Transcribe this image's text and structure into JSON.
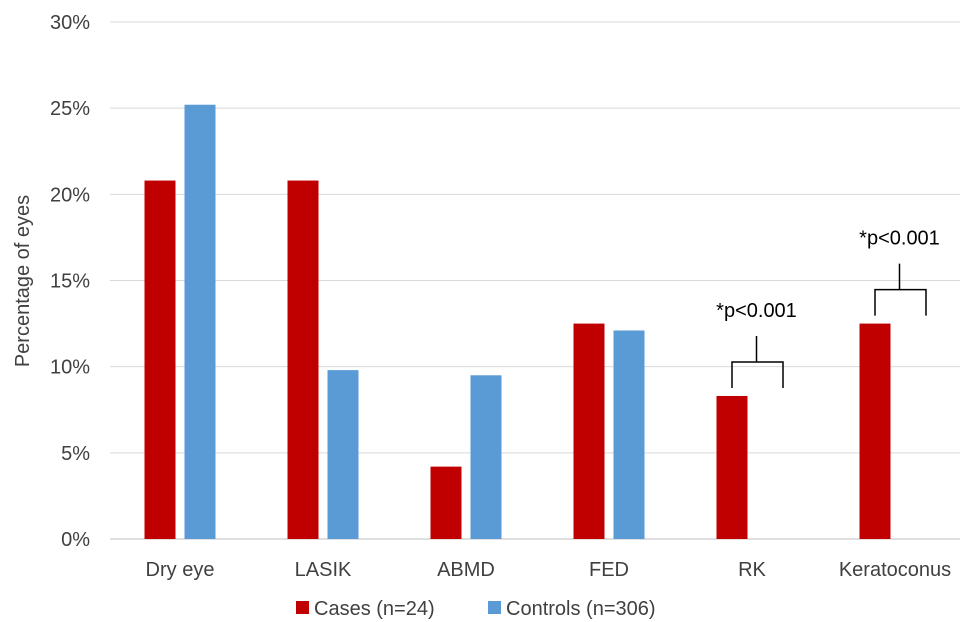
{
  "chart_data": {
    "type": "bar",
    "ylabel": "Percentage of eyes",
    "xlabel": "",
    "title": "",
    "ylim": [
      0,
      30
    ],
    "y_ticks": [
      "0%",
      "5%",
      "10%",
      "15%",
      "20%",
      "25%",
      "30%"
    ],
    "y_tick_values": [
      0,
      5,
      10,
      15,
      20,
      25,
      30
    ],
    "grid": true,
    "legend_position": "bottom",
    "categories": [
      "Dry eye",
      "LASIK",
      "ABMD",
      "FED",
      "RK",
      "Keratoconus"
    ],
    "series": [
      {
        "name": "Cases (n=24)",
        "color": "#c00000",
        "values": [
          20.8,
          20.8,
          4.2,
          12.5,
          8.3,
          12.5
        ]
      },
      {
        "name": "Controls (n=306)",
        "color": "#5b9bd5",
        "values": [
          25.2,
          9.8,
          9.5,
          12.1,
          0,
          0
        ]
      }
    ],
    "annotations": [
      {
        "category": "RK",
        "text": "*p<0.001"
      },
      {
        "category": "Keratoconus",
        "text": "*p<0.001"
      }
    ]
  }
}
